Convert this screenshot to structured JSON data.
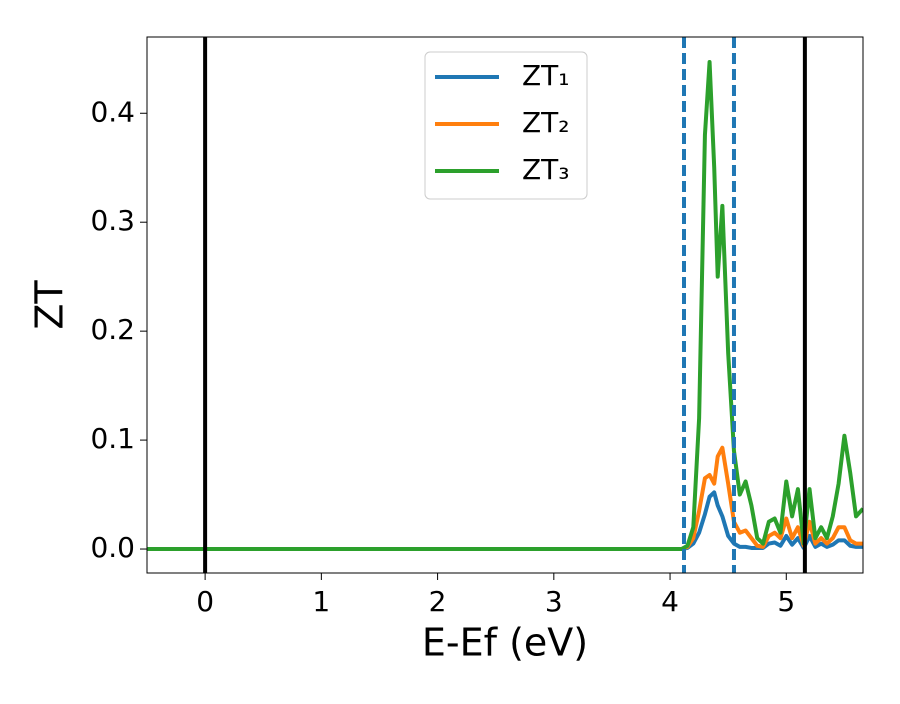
{
  "chart_data": {
    "type": "line",
    "xlabel": "E-Ef (eV)",
    "ylabel": "ZT",
    "x": [
      -0.5,
      4.0,
      4.1,
      4.15,
      4.2,
      4.25,
      4.3,
      4.34,
      4.38,
      4.41,
      4.45,
      4.5,
      4.55,
      4.6,
      4.65,
      4.7,
      4.75,
      4.8,
      4.85,
      4.9,
      4.95,
      5.0,
      5.05,
      5.1,
      5.15,
      5.2,
      5.25,
      5.3,
      5.35,
      5.4,
      5.45,
      5.5,
      5.55,
      5.6,
      5.66
    ],
    "series": [
      {
        "name": "ZT₁",
        "color": "#1f77b4",
        "values": [
          0,
          0,
          0,
          0.001,
          0.005,
          0.015,
          0.032,
          0.048,
          0.052,
          0.04,
          0.03,
          0.012,
          0.005,
          0.002,
          0.002,
          0.001,
          0.001,
          0.001,
          0.005,
          0.006,
          0.003,
          0.012,
          0.004,
          0.01,
          0.001,
          0.012,
          0.002,
          0.005,
          0.002,
          0.004,
          0.008,
          0.008,
          0.003,
          0.002,
          0.002
        ]
      },
      {
        "name": "ZT₂",
        "color": "#ff7f0e",
        "values": [
          0,
          0,
          0,
          0.002,
          0.01,
          0.035,
          0.065,
          0.068,
          0.06,
          0.085,
          0.093,
          0.06,
          0.025,
          0.015,
          0.017,
          0.01,
          0.003,
          0.002,
          0.012,
          0.015,
          0.01,
          0.028,
          0.01,
          0.02,
          0.003,
          0.025,
          0.005,
          0.01,
          0.005,
          0.01,
          0.02,
          0.02,
          0.008,
          0.005,
          0.005
        ]
      },
      {
        "name": "ZT₃",
        "color": "#2ca02c",
        "values": [
          0,
          0,
          0,
          0.003,
          0.02,
          0.12,
          0.38,
          0.447,
          0.35,
          0.25,
          0.315,
          0.18,
          0.09,
          0.05,
          0.062,
          0.04,
          0.01,
          0.005,
          0.025,
          0.028,
          0.015,
          0.062,
          0.03,
          0.055,
          0.005,
          0.055,
          0.01,
          0.02,
          0.01,
          0.03,
          0.06,
          0.104,
          0.07,
          0.03,
          0.037
        ]
      }
    ],
    "vlines": [
      {
        "value": 0,
        "color": "#000000",
        "style": "solid"
      },
      {
        "value": 5.16,
        "color": "#000000",
        "style": "solid"
      },
      {
        "value": 4.12,
        "color": "#1f77b4",
        "style": "dashed"
      },
      {
        "value": 4.55,
        "color": "#1f77b4",
        "style": "dashed"
      }
    ],
    "xlim": [
      -0.5,
      5.66
    ],
    "ylim": [
      -0.022,
      0.47
    ],
    "xticks": [
      0,
      1,
      2,
      3,
      4,
      5
    ],
    "yticks": [
      {
        "value": 0,
        "label": "0.0"
      },
      0.1,
      0.2,
      0.3,
      0.4
    ],
    "legend": "upper center"
  }
}
